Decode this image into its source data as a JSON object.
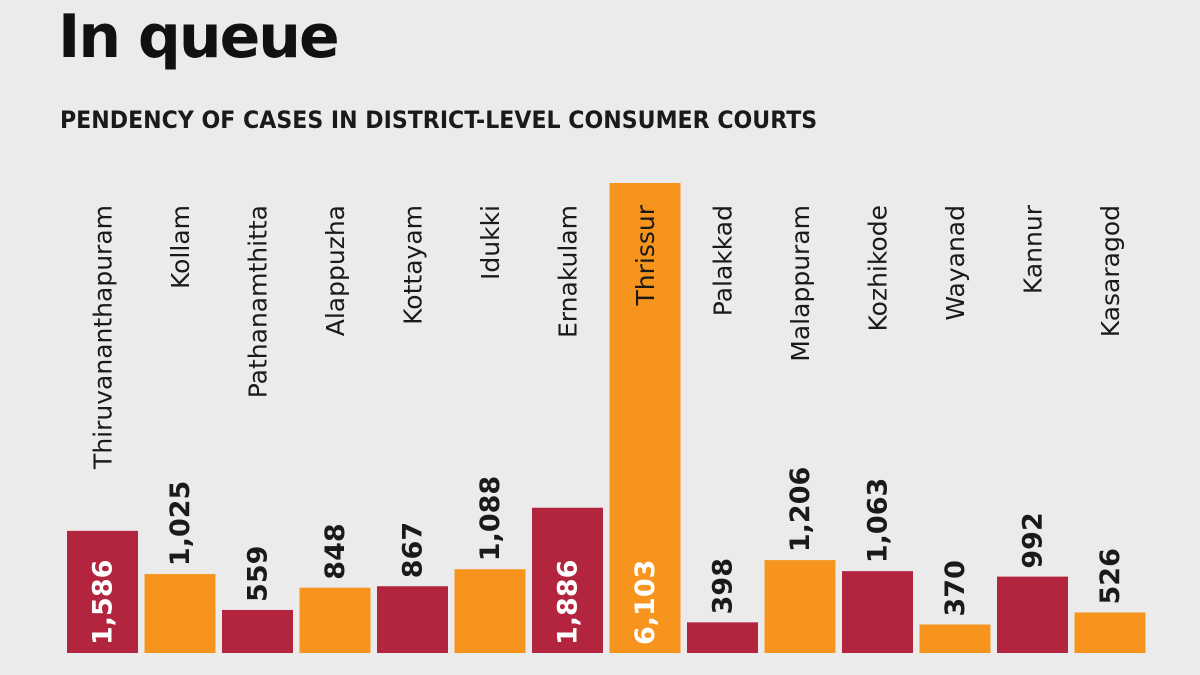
{
  "chart_data": {
    "type": "bar",
    "title": "In queue",
    "subtitle": "PENDENCY OF CASES IN DISTRICT-LEVEL CONSUMER COURTS",
    "xlabel": "",
    "ylabel": "",
    "categories": [
      "Thiruvananthapuram",
      "Kollam",
      "Pathanamthitta",
      "Alappuzha",
      "Kottayam",
      "Idukki",
      "Ernakulam",
      "Thrissur",
      "Palakkad",
      "Malappuram",
      "Kozhikode",
      "Wayanad",
      "Kannur",
      "Kasaragod"
    ],
    "values": [
      1586,
      1025,
      559,
      848,
      867,
      1088,
      1886,
      6103,
      398,
      1206,
      1063,
      370,
      992,
      526
    ],
    "value_labels": [
      "1,586",
      "1,025",
      "559",
      "848",
      "867",
      "1,088",
      "1,886",
      "6,103",
      "398",
      "1,206",
      "1,063",
      "370",
      "992",
      "526"
    ],
    "ylim": [
      0,
      6103
    ],
    "grid": false,
    "legend": "none",
    "colors": {
      "crimson": "#b3243e",
      "orange": "#f7941d",
      "background": "#ebebeb"
    },
    "bar_colors": [
      "#b3243e",
      "#f7941d",
      "#b3243e",
      "#f7941d",
      "#b3243e",
      "#f7941d",
      "#b3243e",
      "#f7941d",
      "#b3243e",
      "#f7941d",
      "#b3243e",
      "#f7941d",
      "#b3243e",
      "#f7941d"
    ],
    "labels_inside": [
      true,
      false,
      false,
      false,
      false,
      false,
      true,
      true,
      false,
      false,
      false,
      false,
      false,
      false
    ]
  }
}
